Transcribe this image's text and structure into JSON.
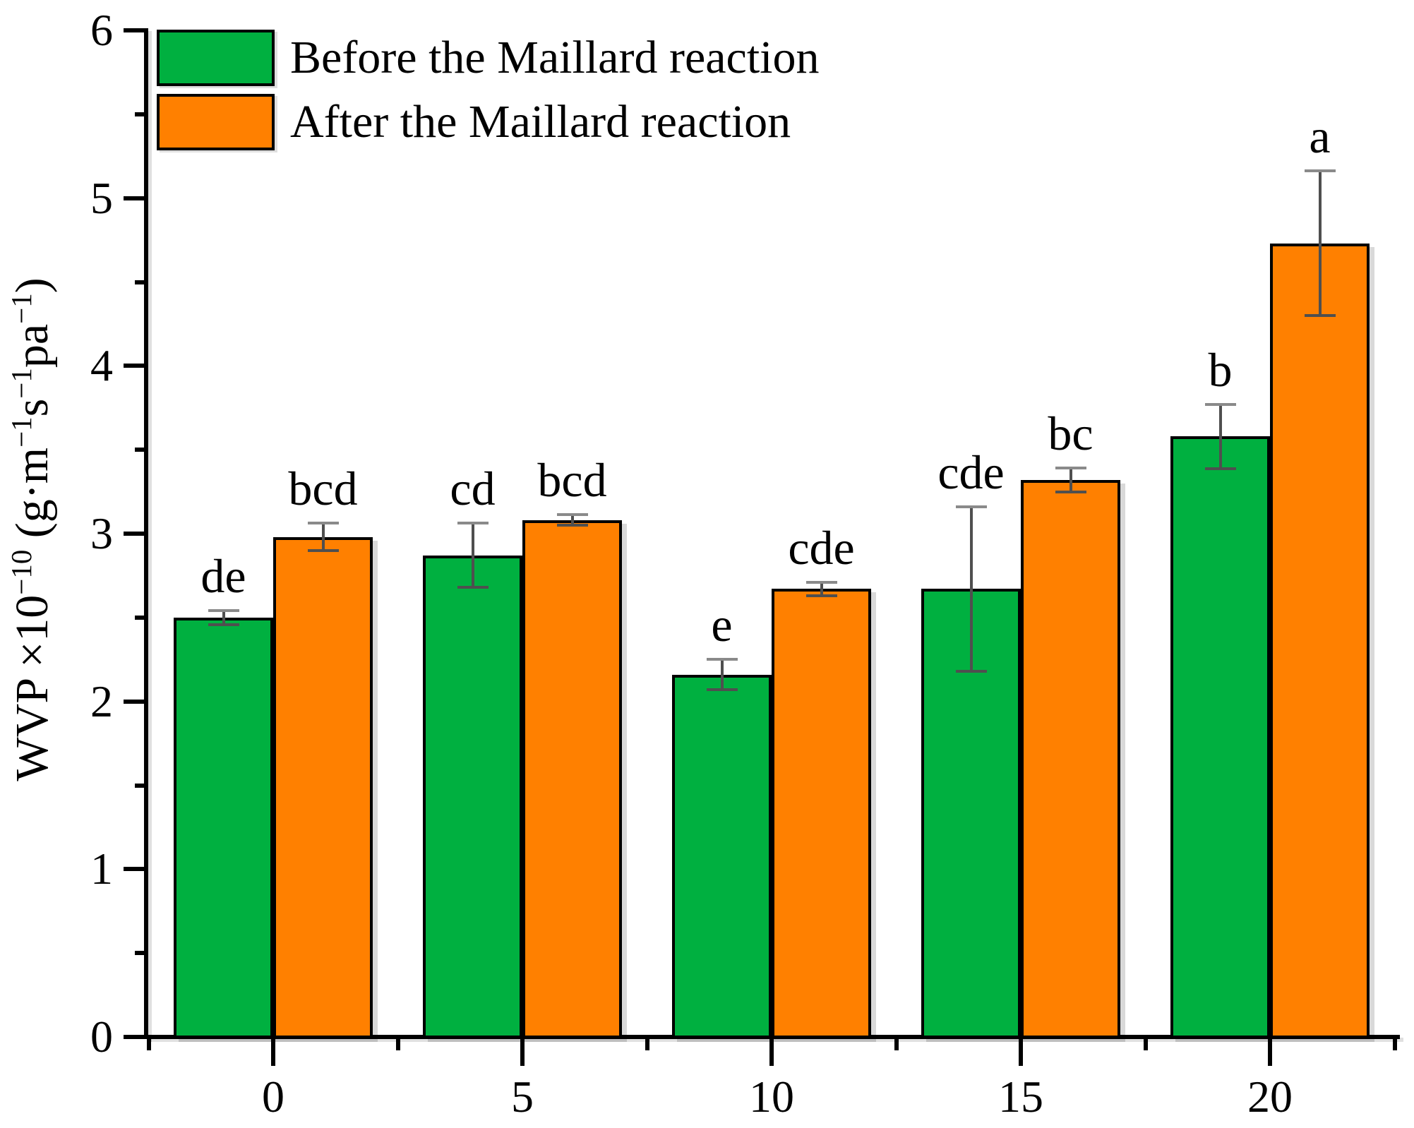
{
  "chart_data": {
    "type": "bar",
    "title": "",
    "categories": [
      "0",
      "5",
      "10",
      "15",
      "20"
    ],
    "series": [
      {
        "name": "Before the Maillard reaction",
        "color": "#00B040",
        "values": [
          2.5,
          2.87,
          2.16,
          2.67,
          3.58
        ],
        "errors": [
          0.05,
          0.2,
          0.1,
          0.5,
          0.2
        ],
        "letters": [
          "de",
          "cd",
          "e",
          "cde",
          "b"
        ]
      },
      {
        "name": "After the Maillard reaction",
        "color": "#FF8000",
        "values": [
          2.98,
          3.08,
          2.67,
          3.32,
          4.73
        ],
        "errors": [
          0.09,
          0.04,
          0.05,
          0.08,
          0.44
        ],
        "letters": [
          "bcd",
          "bcd",
          "cde",
          "bc",
          "a"
        ]
      }
    ],
    "ylabel_plain": "WVP ×10−10 (g·m−1s−1pa−1)",
    "ylabel_parts": [
      {
        "t": "WVP ×10"
      },
      {
        "t": "−10",
        "sup": true
      },
      {
        "t": " (g·m"
      },
      {
        "t": "−1",
        "sup": true
      },
      {
        "t": "s"
      },
      {
        "t": "−1",
        "sup": true
      },
      {
        "t": "pa"
      },
      {
        "t": "−1",
        "sup": true
      },
      {
        "t": ")"
      }
    ],
    "xlabel": "",
    "y_ticks": [
      0,
      1,
      2,
      3,
      4,
      5,
      6
    ],
    "y_minor_step": 0.5,
    "ylim": [
      0,
      6
    ],
    "grid": false,
    "legend_position": "top-left",
    "bar_outline_color": "#000000",
    "error_bar_color": "#4f4f4f",
    "axis_color": "#000000"
  }
}
